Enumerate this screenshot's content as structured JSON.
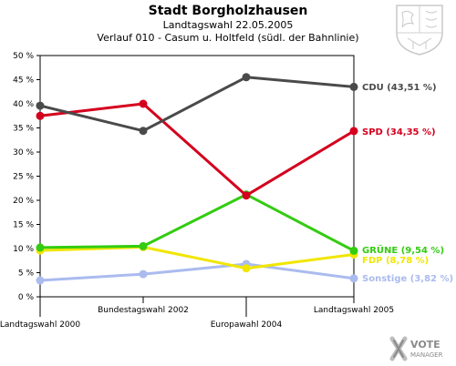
{
  "header": {
    "title": "Stadt Borgholzhausen",
    "subtitle": "Landtagswahl 22.05.2005",
    "subtitle2": "Verlauf 010 - Casum u. Holtfeld (südl. der Bahnlinie)"
  },
  "branding": {
    "crest_icon": "nrw-coat-of-arms-icon",
    "logo_line1": "VOTE",
    "logo_line2": "MANAGER"
  },
  "chart_data": {
    "type": "line",
    "title": "Stadt Borgholzhausen",
    "categories": [
      "Landtagswahl 2000",
      "Bundestagswahl 2002",
      "Europawahl 2004",
      "Landtagswahl 2005"
    ],
    "y_ticks": [
      "0 %",
      "5 %",
      "10 %",
      "15 %",
      "20 %",
      "25 %",
      "30 %",
      "35 %",
      "40 %",
      "45 %",
      "50 %"
    ],
    "ylim": [
      0,
      50
    ],
    "grid": false,
    "series": [
      {
        "key": "cdu",
        "label": "CDU (43,51 %)",
        "color": "#4a4a4a",
        "values": [
          39.6,
          34.4,
          45.5,
          43.51
        ]
      },
      {
        "key": "spd",
        "label": "SPD (34,35 %)",
        "color": "#d4001e",
        "values": [
          37.5,
          40.0,
          21.0,
          34.35
        ]
      },
      {
        "key": "gruene",
        "label": "GRÜNE (9,54 %)",
        "color": "#33cc11",
        "values": [
          10.2,
          10.5,
          21.2,
          9.54
        ]
      },
      {
        "key": "fdp",
        "label": "FDP (8,78 %)",
        "color": "#f0e600",
        "values": [
          9.6,
          10.3,
          5.9,
          8.78
        ]
      },
      {
        "key": "sonstige",
        "label": "Sonstige (3,82 %)",
        "color": "#aabbee",
        "values": [
          3.4,
          4.7,
          6.8,
          3.82
        ]
      }
    ]
  }
}
